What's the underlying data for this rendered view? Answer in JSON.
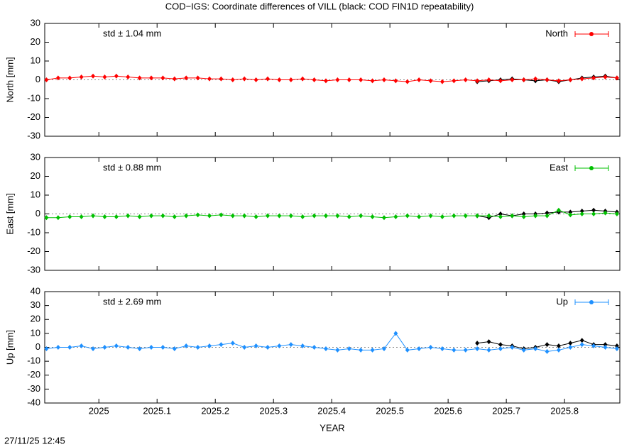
{
  "title": "COD−IGS: Coordinate differences of VILL (black: COD FIN1D repeatability)",
  "timestamp": "27/11/25 12:45",
  "chart_data": [
    {
      "type": "line",
      "ylabel": "North [mm]",
      "annotation": "std ± 1.04 mm",
      "annotation_color": "#ff0000",
      "xlim": [
        2024.907,
        2025.895
      ],
      "xticks": [
        2025,
        2025.1,
        2025.2,
        2025.3,
        2025.4,
        2025.5,
        2025.6,
        2025.7,
        2025.8
      ],
      "ylim": [
        -30,
        30
      ],
      "yticks": [
        -30,
        -20,
        -10,
        0,
        10,
        20,
        30
      ],
      "zeroaxis": true,
      "legend": "upper right",
      "series": [
        {
          "x": [
            2025.65,
            2025.67,
            2025.69,
            2025.71,
            2025.73,
            2025.75,
            2025.77,
            2025.79,
            2025.81,
            2025.83,
            2025.85,
            2025.87,
            2025.89
          ],
          "color": "#000000",
          "values": [
            -1,
            -0.5,
            0,
            0.5,
            0,
            -0.5,
            0,
            -1,
            0,
            1,
            1.5,
            2,
            1
          ]
        },
        {
          "name": "North",
          "color": "#ff0000",
          "x": [
            2024.91,
            2024.93,
            2024.95,
            2024.97,
            2024.99,
            2025.01,
            2025.03,
            2025.05,
            2025.07,
            2025.09,
            2025.11,
            2025.13,
            2025.15,
            2025.17,
            2025.19,
            2025.21,
            2025.23,
            2025.25,
            2025.27,
            2025.29,
            2025.31,
            2025.33,
            2025.35,
            2025.37,
            2025.39,
            2025.41,
            2025.43,
            2025.45,
            2025.47,
            2025.49,
            2025.51,
            2025.53,
            2025.55,
            2025.57,
            2025.59,
            2025.61,
            2025.63,
            2025.65,
            2025.67,
            2025.69,
            2025.71,
            2025.73,
            2025.75,
            2025.77,
            2025.79,
            2025.81,
            2025.83,
            2025.85,
            2025.87,
            2025.89
          ],
          "values": [
            0,
            1,
            1,
            1.5,
            2,
            1.5,
            2,
            1.5,
            1,
            1,
            1,
            0.5,
            1,
            1,
            0.5,
            0.5,
            0,
            0.5,
            0,
            0.5,
            0,
            0,
            0.5,
            0,
            -0.5,
            0,
            0,
            0,
            -0.5,
            0,
            -0.5,
            -1,
            0,
            -0.5,
            -1,
            -0.5,
            0,
            -0.5,
            0,
            -0.5,
            0,
            0,
            0.5,
            0,
            -0.5,
            0,
            0.5,
            1,
            1.5,
            1
          ]
        }
      ]
    },
    {
      "type": "line",
      "ylabel": "East [mm]",
      "annotation": "std ± 0.88 mm",
      "annotation_color": "#00c000",
      "xlim": [
        2024.907,
        2025.895
      ],
      "xticks": [
        2025,
        2025.1,
        2025.2,
        2025.3,
        2025.4,
        2025.5,
        2025.6,
        2025.7,
        2025.8
      ],
      "ylim": [
        -30,
        30
      ],
      "yticks": [
        -30,
        -20,
        -10,
        0,
        10,
        20,
        30
      ],
      "zeroaxis": true,
      "legend": "upper right",
      "series": [
        {
          "x": [
            2025.65,
            2025.67,
            2025.69,
            2025.71,
            2025.73,
            2025.75,
            2025.77,
            2025.79,
            2025.81,
            2025.83,
            2025.85,
            2025.87,
            2025.89
          ],
          "color": "#000000",
          "values": [
            -1,
            -2,
            0,
            -1,
            0,
            0,
            0.5,
            1,
            1,
            1.5,
            2,
            1.5,
            1
          ]
        },
        {
          "name": "East",
          "color": "#00c000",
          "x": [
            2024.91,
            2024.93,
            2024.95,
            2024.97,
            2024.99,
            2025.01,
            2025.03,
            2025.05,
            2025.07,
            2025.09,
            2025.11,
            2025.13,
            2025.15,
            2025.17,
            2025.19,
            2025.21,
            2025.23,
            2025.25,
            2025.27,
            2025.29,
            2025.31,
            2025.33,
            2025.35,
            2025.37,
            2025.39,
            2025.41,
            2025.43,
            2025.45,
            2025.47,
            2025.49,
            2025.51,
            2025.53,
            2025.55,
            2025.57,
            2025.59,
            2025.61,
            2025.63,
            2025.65,
            2025.67,
            2025.69,
            2025.71,
            2025.73,
            2025.75,
            2025.77,
            2025.79,
            2025.81,
            2025.83,
            2025.85,
            2025.87,
            2025.89
          ],
          "values": [
            -2,
            -2,
            -1.5,
            -1.5,
            -1,
            -1.5,
            -1.5,
            -1,
            -1.5,
            -1,
            -1,
            -1.5,
            -1,
            -0.5,
            -1,
            -0.5,
            -1,
            -1,
            -1.5,
            -1,
            -1,
            -1,
            -1.5,
            -1,
            -1,
            -1,
            -1.5,
            -1,
            -1.5,
            -2,
            -1.5,
            -1,
            -1.5,
            -1,
            -1.5,
            -1,
            -1,
            -1,
            -1,
            -1.5,
            -1,
            -1.5,
            -1,
            -1,
            2,
            -0.5,
            0,
            0,
            0.5,
            0
          ]
        }
      ]
    },
    {
      "type": "line",
      "ylabel": "Up [mm]",
      "xlabel": "YEAR",
      "annotation": "std ± 2.69 mm",
      "annotation_color": "#1e90ff",
      "xlim": [
        2024.907,
        2025.895
      ],
      "xticks": [
        2025,
        2025.1,
        2025.2,
        2025.3,
        2025.4,
        2025.5,
        2025.6,
        2025.7,
        2025.8
      ],
      "ylim": [
        -40,
        40
      ],
      "yticks": [
        -40,
        -30,
        -20,
        -10,
        0,
        10,
        20,
        30,
        40
      ],
      "zeroaxis": true,
      "legend": "upper right",
      "series": [
        {
          "x": [
            2025.65,
            2025.67,
            2025.69,
            2025.71,
            2025.73,
            2025.75,
            2025.77,
            2025.79,
            2025.81,
            2025.83,
            2025.85,
            2025.87,
            2025.89
          ],
          "color": "#000000",
          "values": [
            3,
            4,
            2,
            1,
            -1,
            0,
            2,
            1,
            3,
            5,
            2,
            2,
            1
          ]
        },
        {
          "name": "Up",
          "color": "#1e90ff",
          "x": [
            2024.91,
            2024.93,
            2024.95,
            2024.97,
            2024.99,
            2025.01,
            2025.03,
            2025.05,
            2025.07,
            2025.09,
            2025.11,
            2025.13,
            2025.15,
            2025.17,
            2025.19,
            2025.21,
            2025.23,
            2025.25,
            2025.27,
            2025.29,
            2025.31,
            2025.33,
            2025.35,
            2025.37,
            2025.39,
            2025.41,
            2025.43,
            2025.45,
            2025.47,
            2025.49,
            2025.51,
            2025.53,
            2025.55,
            2025.57,
            2025.59,
            2025.61,
            2025.63,
            2025.65,
            2025.67,
            2025.69,
            2025.71,
            2025.73,
            2025.75,
            2025.77,
            2025.79,
            2025.81,
            2025.83,
            2025.85,
            2025.87,
            2025.89
          ],
          "values": [
            -1,
            0,
            0,
            1,
            -1,
            0,
            1,
            0,
            -1,
            0,
            0,
            -1,
            1,
            0,
            1,
            2,
            3,
            0,
            1,
            0,
            1,
            2,
            1,
            0,
            -1,
            -2,
            -1,
            -2,
            -2,
            -1,
            10,
            -2,
            -1,
            0,
            -1,
            -2,
            -2,
            -1,
            -2,
            -1,
            0,
            -2,
            -1,
            -3,
            -2,
            0,
            2,
            1,
            0,
            -1
          ]
        }
      ]
    }
  ]
}
